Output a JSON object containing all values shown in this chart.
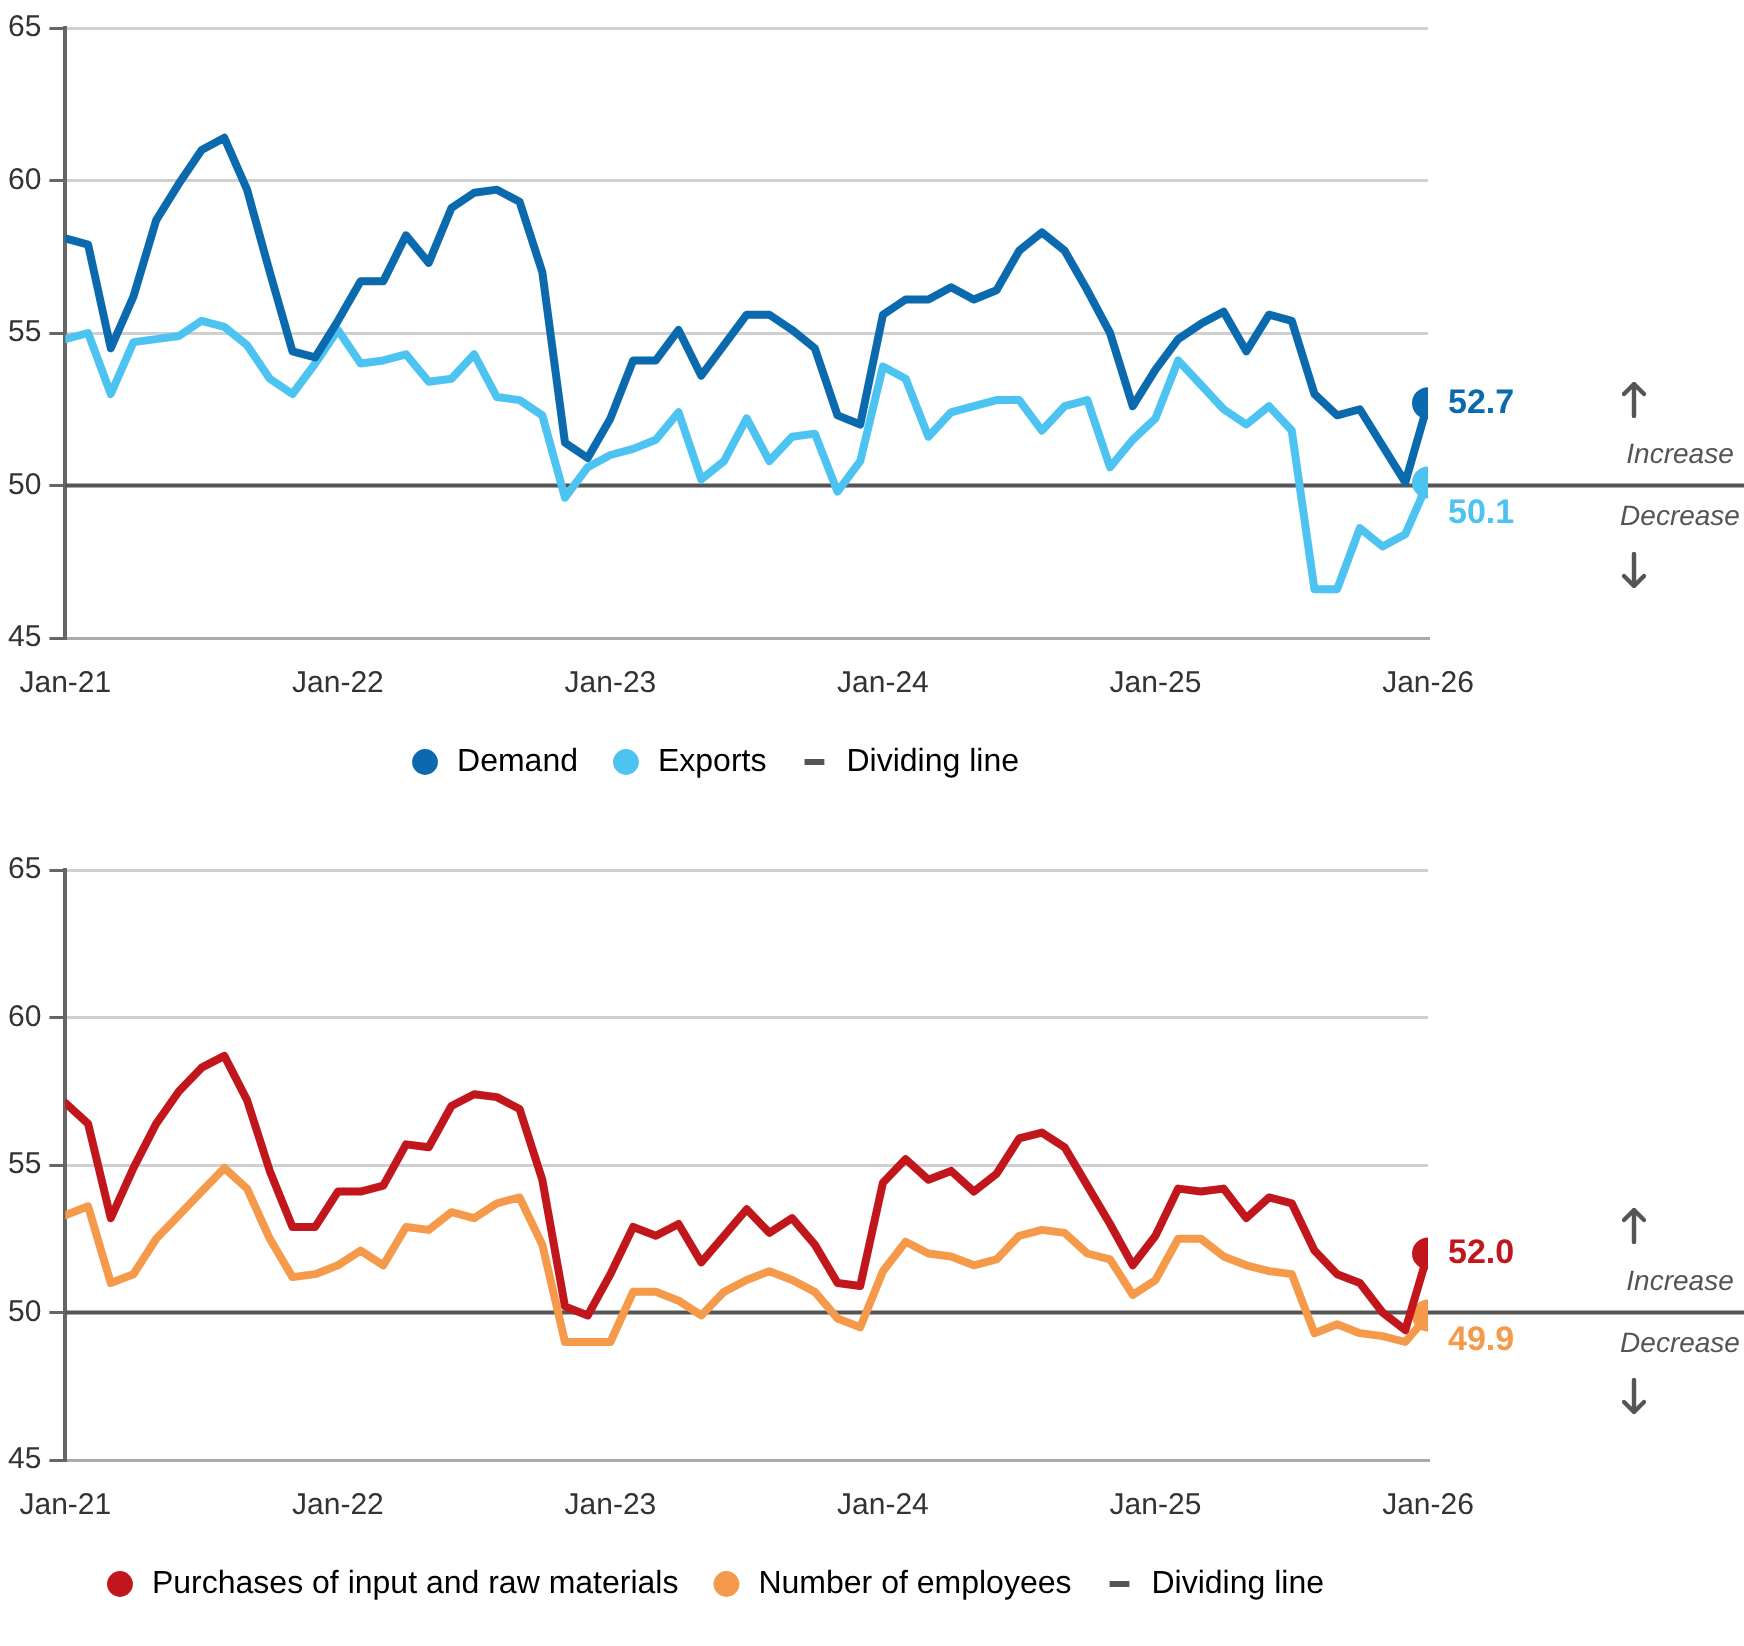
{
  "chart_data": [
    {
      "type": "line",
      "x": [
        "2021-01",
        "2021-02",
        "2021-03",
        "2021-04",
        "2021-05",
        "2021-06",
        "2021-07",
        "2021-08",
        "2021-09",
        "2021-10",
        "2021-11",
        "2021-12",
        "2022-01",
        "2022-02",
        "2022-03",
        "2022-04",
        "2022-05",
        "2022-06",
        "2022-07",
        "2022-08",
        "2022-09",
        "2022-10",
        "2022-11",
        "2022-12",
        "2023-01",
        "2023-02",
        "2023-03",
        "2023-04",
        "2023-05",
        "2023-06",
        "2023-07",
        "2023-08",
        "2023-09",
        "2023-10",
        "2023-11",
        "2023-12",
        "2024-01",
        "2024-02",
        "2024-03",
        "2024-04",
        "2024-05",
        "2024-06",
        "2024-07",
        "2024-08",
        "2024-09",
        "2024-10",
        "2024-11",
        "2024-12",
        "2025-01",
        "2025-02",
        "2025-03",
        "2025-04",
        "2025-05",
        "2025-06",
        "2025-07",
        "2025-08",
        "2025-09",
        "2025-10",
        "2025-11",
        "2025-12",
        "2026-01"
      ],
      "series": [
        {
          "name": "Demand",
          "color": "#0a6aad",
          "values": [
            58.1,
            57.9,
            54.5,
            56.2,
            58.7,
            59.9,
            61.0,
            61.4,
            59.7,
            57.0,
            54.4,
            54.2,
            55.4,
            56.7,
            56.7,
            58.2,
            57.3,
            59.1,
            59.6,
            59.7,
            59.3,
            57.0,
            51.4,
            50.9,
            52.2,
            54.1,
            54.1,
            55.1,
            53.6,
            54.6,
            55.6,
            55.6,
            55.1,
            54.5,
            52.3,
            52.0,
            55.6,
            56.1,
            56.1,
            56.5,
            56.1,
            56.4,
            57.7,
            58.3,
            57.7,
            56.4,
            55.0,
            52.6,
            53.8,
            54.8,
            55.3,
            55.7,
            54.4,
            55.6,
            55.4,
            53.0,
            52.3,
            52.5,
            51.3,
            50.1,
            52.7
          ],
          "value_labels": [
            null,
            null,
            null,
            null,
            null,
            null,
            null,
            null,
            null,
            null,
            null,
            null,
            null,
            null,
            null,
            null,
            null,
            null,
            null,
            null,
            null,
            null,
            null,
            null,
            null,
            null,
            null,
            null,
            null,
            null,
            null,
            null,
            null,
            null,
            null,
            null,
            null,
            null,
            null,
            null,
            null,
            null,
            null,
            null,
            null,
            null,
            null,
            null,
            null,
            null,
            null,
            null,
            null,
            null,
            null,
            null,
            null,
            null,
            null,
            null,
            "52.7"
          ]
        },
        {
          "name": "Exports",
          "color": "#4cc3f0",
          "values": [
            54.8,
            55.0,
            53.0,
            54.7,
            54.8,
            54.9,
            55.4,
            55.2,
            54.6,
            53.5,
            53.0,
            54.0,
            55.1,
            54.0,
            54.1,
            54.3,
            53.4,
            53.5,
            54.3,
            52.9,
            52.8,
            52.3,
            49.6,
            50.6,
            51.0,
            51.2,
            51.5,
            52.4,
            50.2,
            50.8,
            52.2,
            50.8,
            51.6,
            51.7,
            49.8,
            50.8,
            53.9,
            53.5,
            51.6,
            52.4,
            52.6,
            52.8,
            52.8,
            51.8,
            52.6,
            52.8,
            50.6,
            51.5,
            52.2,
            54.1,
            53.3,
            52.5,
            52.0,
            52.6,
            51.8,
            46.6,
            46.6,
            48.6,
            48.0,
            48.4,
            50.1
          ],
          "value_labels": [
            null,
            null,
            null,
            null,
            null,
            null,
            null,
            null,
            null,
            null,
            null,
            null,
            null,
            null,
            null,
            null,
            null,
            null,
            null,
            null,
            null,
            null,
            null,
            null,
            null,
            null,
            null,
            null,
            null,
            null,
            null,
            null,
            null,
            null,
            null,
            null,
            null,
            null,
            null,
            null,
            null,
            null,
            null,
            null,
            null,
            null,
            null,
            null,
            null,
            null,
            null,
            null,
            null,
            null,
            null,
            null,
            null,
            null,
            null,
            null,
            "50.1"
          ]
        }
      ],
      "xlim": [
        "2021-01",
        "2026-01"
      ],
      "xticks": [
        {
          "value": "2021-01",
          "label": "Jan-21"
        },
        {
          "value": "2022-01",
          "label": "Jan-22"
        },
        {
          "value": "2023-01",
          "label": "Jan-23"
        },
        {
          "value": "2024-01",
          "label": "Jan-24"
        },
        {
          "value": "2025-01",
          "label": "Jan-25"
        },
        {
          "value": "2026-01",
          "label": "Jan-26"
        }
      ],
      "ylim": [
        45,
        65
      ],
      "yticks": [
        45,
        50,
        55,
        60,
        65
      ],
      "grid": "y",
      "legend": "bottom",
      "line_style": "solid",
      "ref_lines": [
        {
          "axis": "y",
          "value": 50,
          "label": "Dividing line",
          "color": "#555555"
        }
      ],
      "annotations": [
        "Increase",
        "Decrease"
      ]
    },
    {
      "type": "line",
      "x": [
        "2021-01",
        "2021-02",
        "2021-03",
        "2021-04",
        "2021-05",
        "2021-06",
        "2021-07",
        "2021-08",
        "2021-09",
        "2021-10",
        "2021-11",
        "2021-12",
        "2022-01",
        "2022-02",
        "2022-03",
        "2022-04",
        "2022-05",
        "2022-06",
        "2022-07",
        "2022-08",
        "2022-09",
        "2022-10",
        "2022-11",
        "2022-12",
        "2023-01",
        "2023-02",
        "2023-03",
        "2023-04",
        "2023-05",
        "2023-06",
        "2023-07",
        "2023-08",
        "2023-09",
        "2023-10",
        "2023-11",
        "2023-12",
        "2024-01",
        "2024-02",
        "2024-03",
        "2024-04",
        "2024-05",
        "2024-06",
        "2024-07",
        "2024-08",
        "2024-09",
        "2024-10",
        "2024-11",
        "2024-12",
        "2025-01",
        "2025-02",
        "2025-03",
        "2025-04",
        "2025-05",
        "2025-06",
        "2025-07",
        "2025-08",
        "2025-09",
        "2025-10",
        "2025-11",
        "2025-12",
        "2026-01"
      ],
      "series": [
        {
          "name": "Purchases of input and raw materials",
          "color": "#c0161c",
          "values": [
            57.1,
            56.4,
            53.2,
            54.9,
            56.4,
            57.5,
            58.3,
            58.7,
            57.2,
            54.8,
            52.9,
            52.9,
            54.1,
            54.1,
            54.3,
            55.7,
            55.6,
            57.0,
            57.4,
            57.3,
            56.9,
            54.5,
            50.2,
            49.9,
            51.3,
            52.9,
            52.6,
            53.0,
            51.7,
            52.6,
            53.5,
            52.7,
            53.2,
            52.3,
            51.0,
            50.9,
            54.4,
            55.2,
            54.5,
            54.8,
            54.1,
            54.7,
            55.9,
            56.1,
            55.6,
            54.3,
            53.0,
            51.6,
            52.6,
            54.2,
            54.1,
            54.2,
            53.2,
            53.9,
            53.7,
            52.1,
            51.3,
            51.0,
            50.0,
            49.4,
            52.0
          ],
          "value_labels": [
            null,
            null,
            null,
            null,
            null,
            null,
            null,
            null,
            null,
            null,
            null,
            null,
            null,
            null,
            null,
            null,
            null,
            null,
            null,
            null,
            null,
            null,
            null,
            null,
            null,
            null,
            null,
            null,
            null,
            null,
            null,
            null,
            null,
            null,
            null,
            null,
            null,
            null,
            null,
            null,
            null,
            null,
            null,
            null,
            null,
            null,
            null,
            null,
            null,
            null,
            null,
            null,
            null,
            null,
            null,
            null,
            null,
            null,
            null,
            null,
            "52.0"
          ]
        },
        {
          "name": "Number of employees",
          "color": "#f5994a",
          "values": [
            53.3,
            53.6,
            51.0,
            51.3,
            52.5,
            53.3,
            54.1,
            54.9,
            54.2,
            52.5,
            51.2,
            51.3,
            51.6,
            52.1,
            51.6,
            52.9,
            52.8,
            53.4,
            53.2,
            53.7,
            53.9,
            52.3,
            49.0,
            49.0,
            49.0,
            50.7,
            50.7,
            50.4,
            49.9,
            50.7,
            51.1,
            51.4,
            51.1,
            50.7,
            49.8,
            49.5,
            51.4,
            52.4,
            52.0,
            51.9,
            51.6,
            51.8,
            52.6,
            52.8,
            52.7,
            52.0,
            51.8,
            50.6,
            51.1,
            52.5,
            52.5,
            51.9,
            51.6,
            51.4,
            51.3,
            49.3,
            49.6,
            49.3,
            49.2,
            49.0,
            49.9
          ],
          "value_labels": [
            null,
            null,
            null,
            null,
            null,
            null,
            null,
            null,
            null,
            null,
            null,
            null,
            null,
            null,
            null,
            null,
            null,
            null,
            null,
            null,
            null,
            null,
            null,
            null,
            null,
            null,
            null,
            null,
            null,
            null,
            null,
            null,
            null,
            null,
            null,
            null,
            null,
            null,
            null,
            null,
            null,
            null,
            null,
            null,
            null,
            null,
            null,
            null,
            null,
            null,
            null,
            null,
            null,
            null,
            null,
            null,
            null,
            null,
            null,
            null,
            "49.9"
          ]
        }
      ],
      "xlim": [
        "2021-01",
        "2026-01"
      ],
      "xticks": [
        {
          "value": "2021-01",
          "label": "Jan-21"
        },
        {
          "value": "2022-01",
          "label": "Jan-22"
        },
        {
          "value": "2023-01",
          "label": "Jan-23"
        },
        {
          "value": "2024-01",
          "label": "Jan-24"
        },
        {
          "value": "2025-01",
          "label": "Jan-25"
        },
        {
          "value": "2026-01",
          "label": "Jan-26"
        }
      ],
      "ylim": [
        45,
        65
      ],
      "yticks": [
        45,
        50,
        55,
        60,
        65
      ],
      "grid": "y",
      "legend": "bottom",
      "line_style": "solid",
      "ref_lines": [
        {
          "axis": "y",
          "value": 50,
          "label": "Dividing line",
          "color": "#555555"
        }
      ],
      "annotations": [
        "Increase",
        "Decrease"
      ]
    }
  ]
}
